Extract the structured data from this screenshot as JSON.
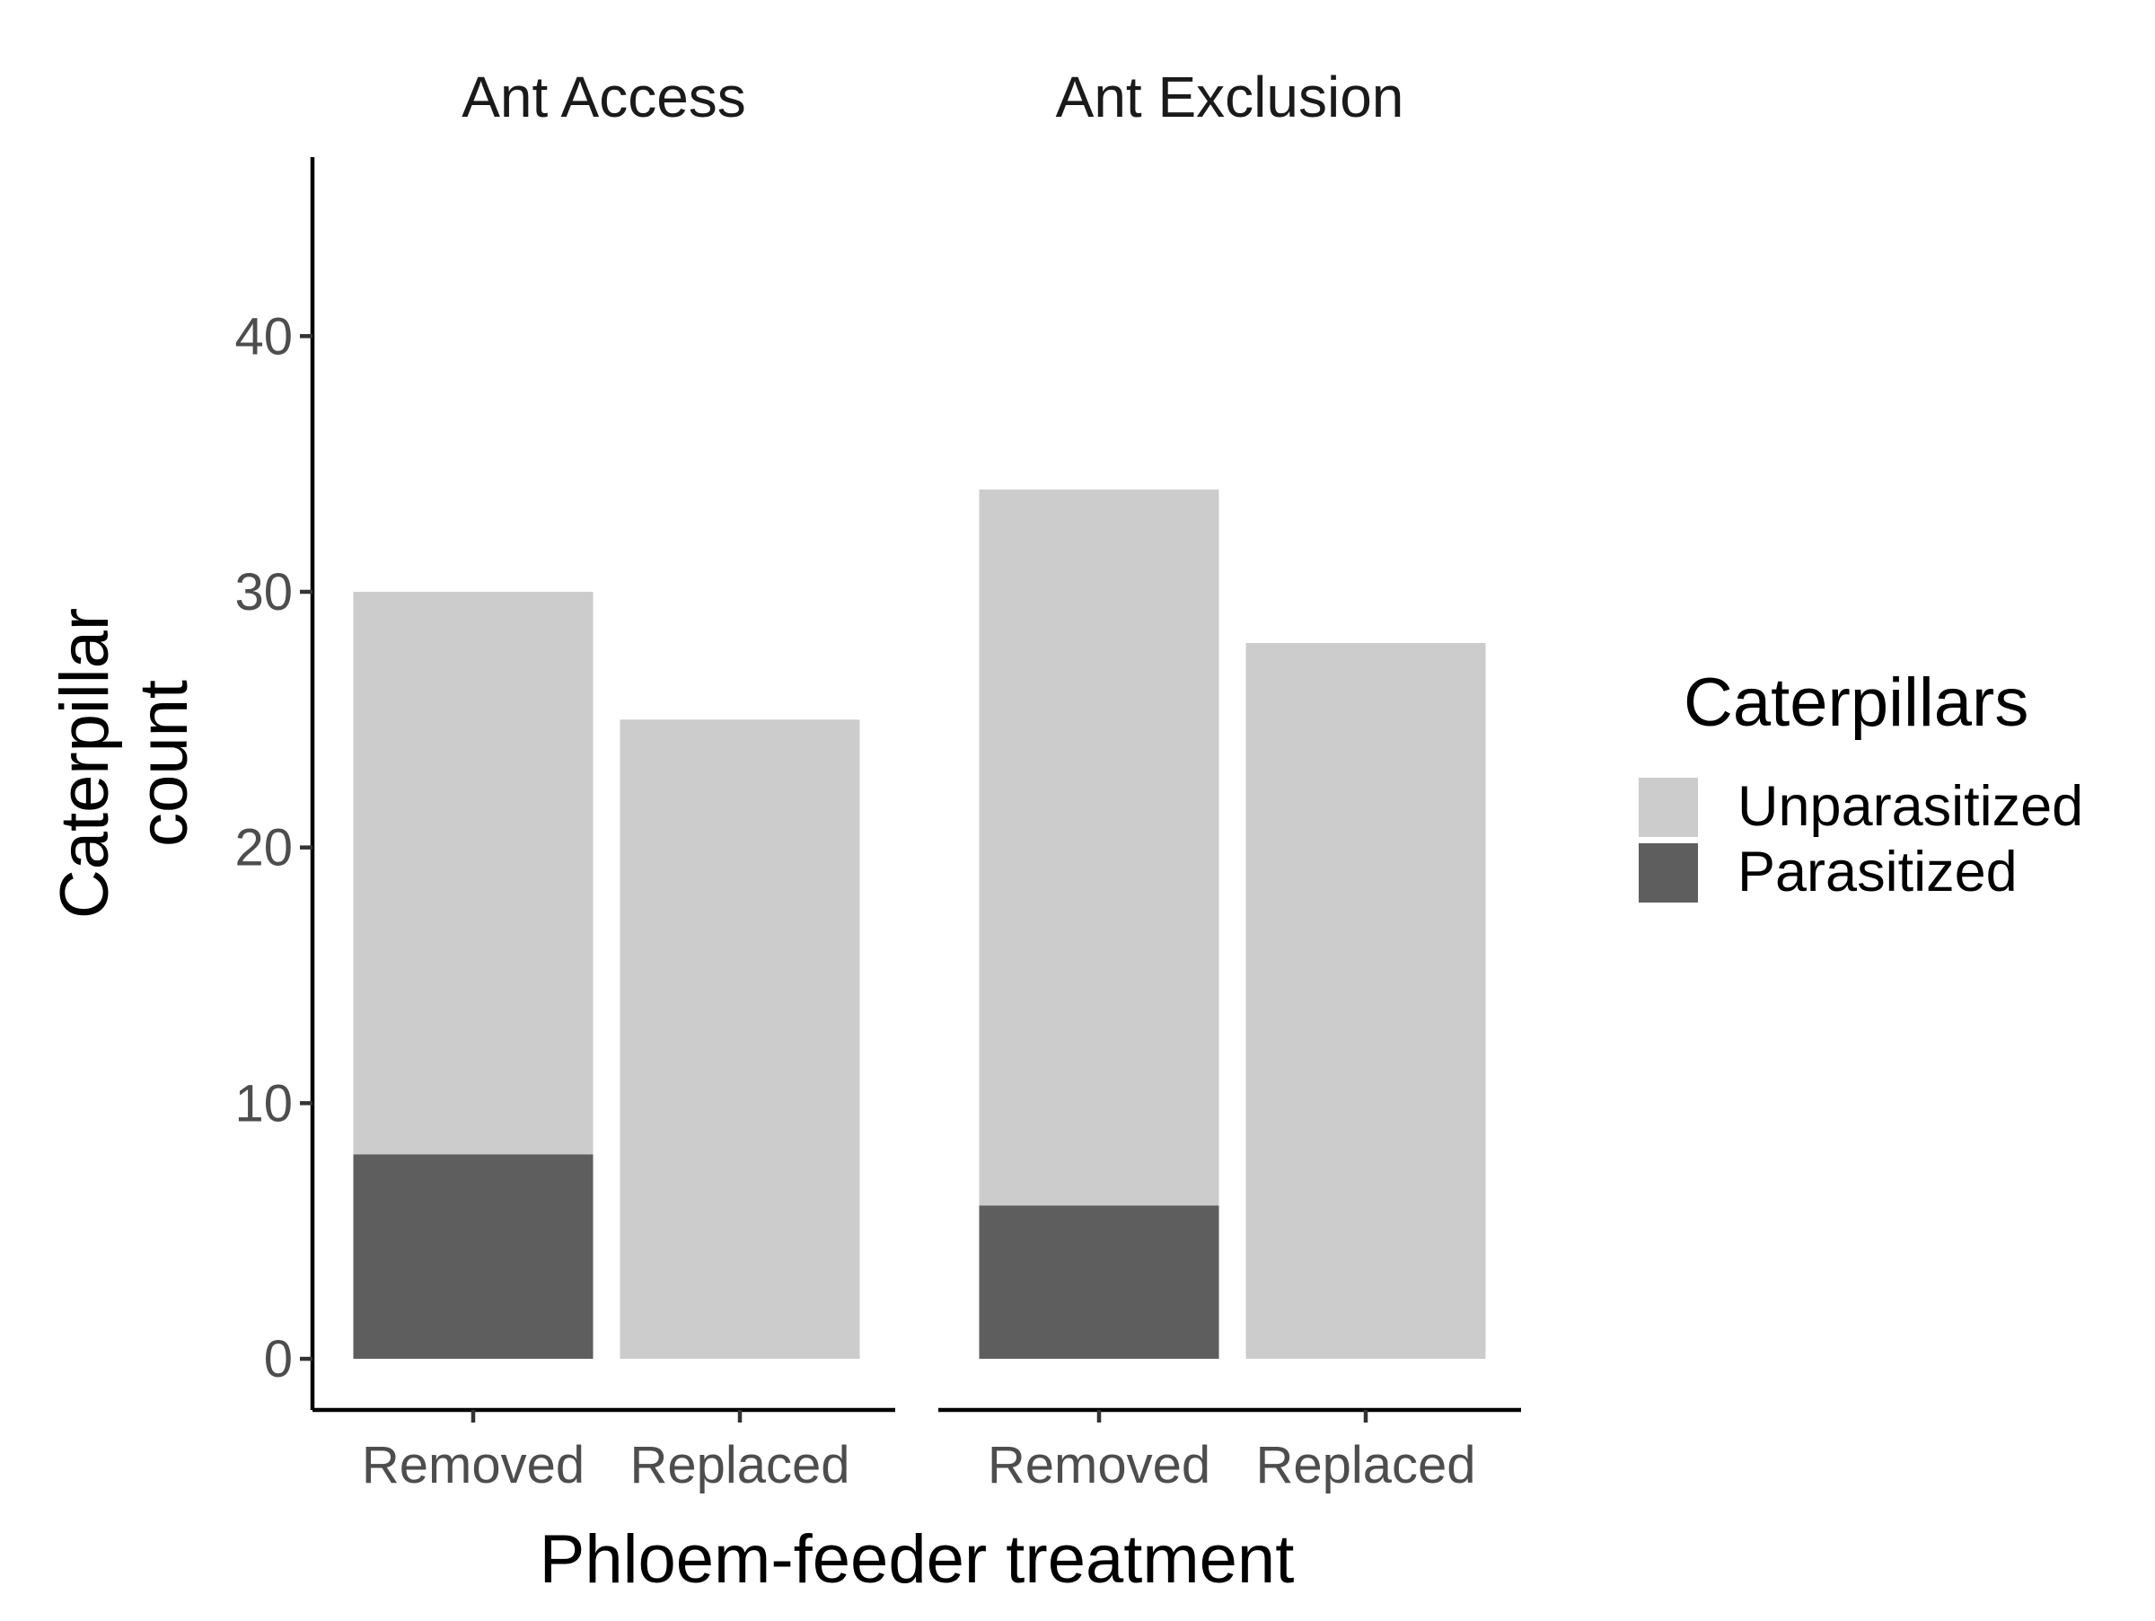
{
  "chart_data": {
    "type": "bar",
    "stacked": true,
    "facets": [
      {
        "title": "Ant Access",
        "categories": [
          "Removed",
          "Replaced"
        ],
        "series": [
          {
            "name": "Parasitized",
            "values": [
              8,
              0
            ]
          },
          {
            "name": "Unparasitized",
            "values": [
              22,
              25
            ]
          }
        ]
      },
      {
        "title": "Ant Exclusion",
        "categories": [
          "Removed",
          "Replaced"
        ],
        "series": [
          {
            "name": "Parasitized",
            "values": [
              6,
              0
            ]
          },
          {
            "name": "Unparasitized",
            "values": [
              28,
              28
            ]
          }
        ]
      }
    ],
    "xlabel": "Phloem-feeder treatment",
    "ylabel": [
      "Caterpillar",
      "count"
    ],
    "yticks": [
      0,
      10,
      20,
      30,
      40
    ],
    "ylim": [
      -2,
      47
    ],
    "grid": false,
    "legend": {
      "title": "Caterpillars",
      "placement": "right",
      "entries": [
        {
          "name": "Unparasitized",
          "color": "#cccccc"
        },
        {
          "name": "Parasitized",
          "color": "#5e5e5e"
        }
      ]
    },
    "colors": {
      "Unparasitized": "#cccccc",
      "Parasitized": "#5e5e5e"
    }
  }
}
